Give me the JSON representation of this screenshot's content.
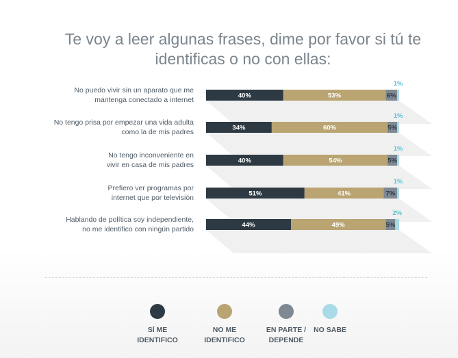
{
  "title": "Te voy a leer algunas frases, dime por favor si tú te identificas o no con ellas:",
  "colors": {
    "si": "#2e3a43",
    "no": "#b9a472",
    "parte": "#7e8993",
    "nosabe": "#a9dbe6",
    "text": "#4f5b66",
    "nosabe_label": "#5cc0d2"
  },
  "legend": [
    {
      "key": "si",
      "label": "SÍ ME\nIDENTIFICO"
    },
    {
      "key": "no",
      "label": "NO ME\nIDENTIFICO"
    },
    {
      "key": "parte",
      "label": "EN PARTE /\nDEPENDE"
    },
    {
      "key": "nosabe",
      "label": "NO SABE"
    }
  ],
  "chart_data": {
    "type": "bar",
    "orientation": "horizontal",
    "stacked": true,
    "title": "Te voy a leer algunas frases, dime por favor si tú te identificas o no con ellas:",
    "categories": [
      "No puedo vivir sin un aparato que me mantenga conectado a internet",
      "No tengo prisa por empezar una vida adulta como la de mis padres",
      "No tengo inconveniente en vivir en casa de mis padres",
      "Prefiero ver programas por internet que por televisión",
      "Hablando de política soy independiente, no me identifico con ningún partido"
    ],
    "category_labels": [
      "No puedo vivir sin un aparato que me\nmantenga conectado a internet",
      "No tengo prisa por empezar una vida adulta\ncomo la de mis padres",
      "No tengo inconveniente en\nvivir en casa de mis padres",
      "Prefiero ver programas por\ninternet que por televisión",
      "Hablando de política soy independiente,\nno me identifico con ningún partido"
    ],
    "series": [
      {
        "name": "SÍ ME IDENTIFICO",
        "key": "si",
        "values": [
          40,
          34,
          40,
          51,
          44
        ]
      },
      {
        "name": "NO ME IDENTIFICO",
        "key": "no",
        "values": [
          53,
          60,
          54,
          41,
          49
        ]
      },
      {
        "name": "EN PARTE / DEPENDE",
        "key": "parte",
        "values": [
          6,
          5,
          5,
          7,
          5
        ]
      },
      {
        "name": "NO SABE",
        "key": "nosabe",
        "values": [
          1,
          1,
          1,
          1,
          2
        ]
      }
    ],
    "value_suffix": "%",
    "xlim": [
      0,
      100
    ]
  }
}
